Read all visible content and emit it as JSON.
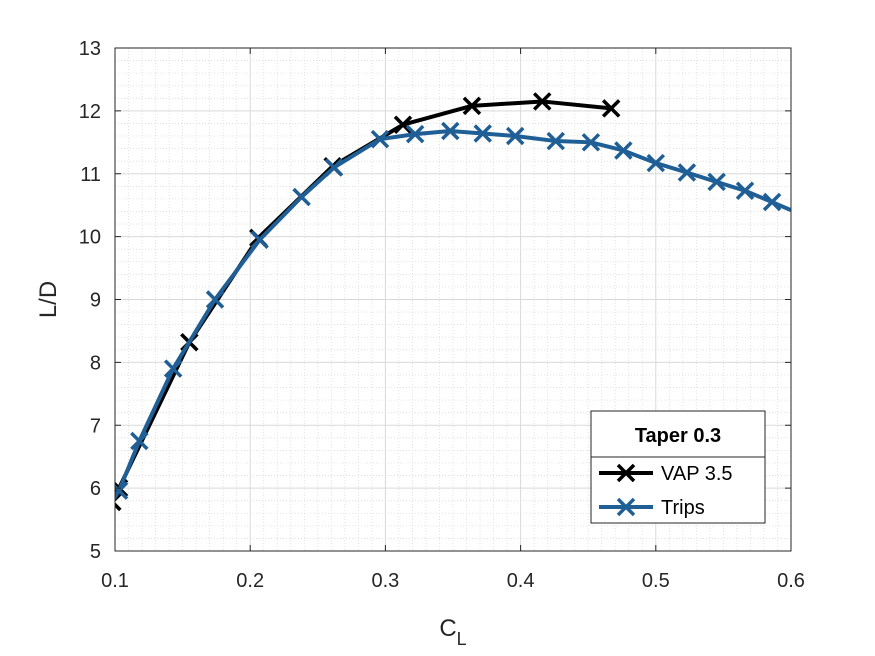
{
  "chart_data": {
    "type": "line",
    "title": "",
    "xlabel": "C",
    "xlabel_sub": "L",
    "ylabel": "L/D",
    "xlim": [
      0.1,
      0.6
    ],
    "ylim": [
      5,
      13
    ],
    "xticks": [
      0.1,
      0.2,
      0.3,
      0.4,
      0.5,
      0.6
    ],
    "xtick_labels": [
      "0.1",
      "0.2",
      "0.3",
      "0.4",
      "0.5",
      "0.6"
    ],
    "yticks": [
      5,
      6,
      7,
      8,
      9,
      10,
      11,
      12,
      13
    ],
    "ytick_labels": [
      "5",
      "6",
      "7",
      "8",
      "9",
      "10",
      "11",
      "12",
      "13"
    ],
    "grid": true,
    "minor_grid": true,
    "legend_title": "Taper 0.3",
    "legend_position": "bottom-right",
    "series": [
      {
        "name": "VAP 3.5",
        "color": "#000000",
        "marker": "x",
        "x": [
          0.098,
          0.103,
          0.155,
          0.206,
          0.261,
          0.313,
          0.364,
          0.416,
          0.467
        ],
        "y": [
          5.78,
          6.0,
          8.32,
          9.98,
          11.12,
          11.78,
          12.08,
          12.15,
          12.04
        ]
      },
      {
        "name": "Trips",
        "color": "#1f5f96",
        "marker": "x",
        "x": [
          0.099,
          0.103,
          0.118,
          0.143,
          0.174,
          0.207,
          0.238,
          0.262,
          0.296,
          0.322,
          0.348,
          0.372,
          0.396,
          0.426,
          0.452,
          0.476,
          0.5,
          0.523,
          0.545,
          0.566,
          0.586,
          0.6
        ],
        "y": [
          5.82,
          5.96,
          6.75,
          7.9,
          9.0,
          9.95,
          10.63,
          11.1,
          11.55,
          11.63,
          11.68,
          11.64,
          11.6,
          11.52,
          11.5,
          11.37,
          11.17,
          11.02,
          10.87,
          10.73,
          10.55,
          10.42
        ],
        "markers_x": [
          0.103,
          0.118,
          0.143,
          0.174,
          0.207,
          0.238,
          0.262,
          0.296,
          0.322,
          0.348,
          0.372,
          0.396,
          0.426,
          0.452,
          0.476,
          0.5,
          0.523,
          0.545,
          0.566,
          0.586
        ],
        "markers_y": [
          5.96,
          6.75,
          7.9,
          9.0,
          9.95,
          10.63,
          11.1,
          11.55,
          11.63,
          11.68,
          11.64,
          11.6,
          11.52,
          11.5,
          11.37,
          11.17,
          11.02,
          10.87,
          10.73,
          10.55
        ]
      }
    ]
  }
}
